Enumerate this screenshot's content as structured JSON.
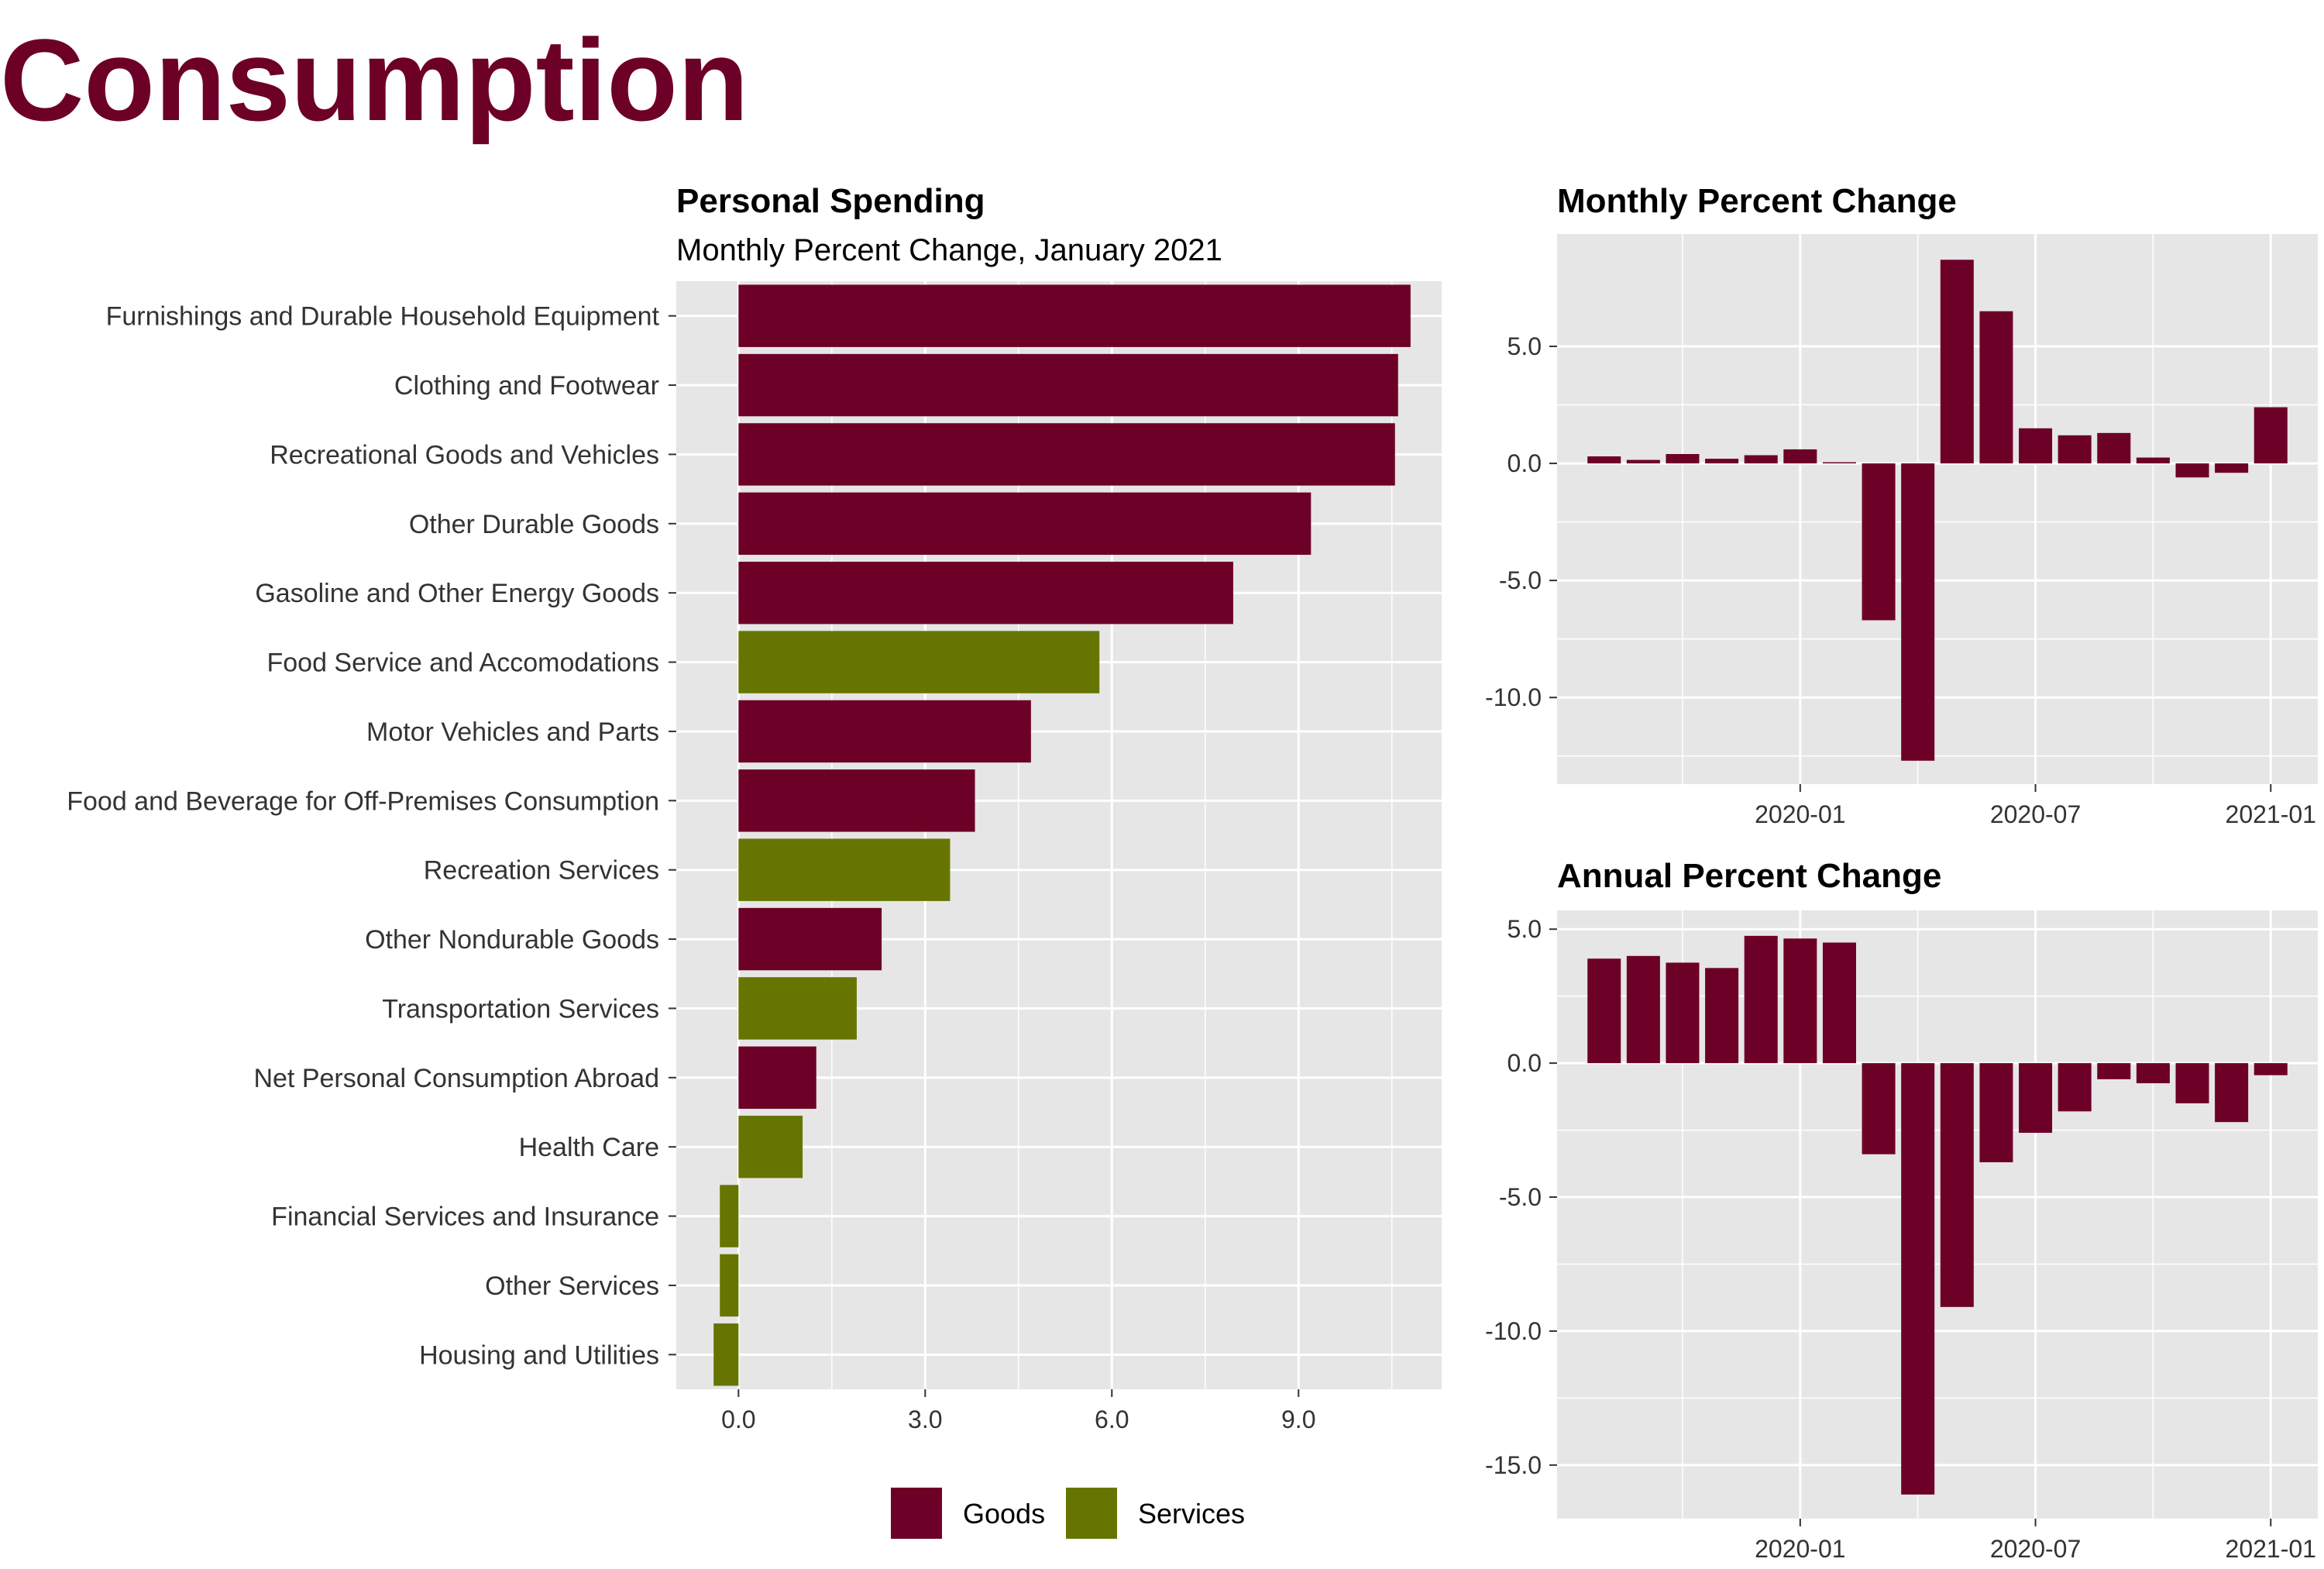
{
  "title": "Consumption",
  "colors": {
    "goods": "#6d0026",
    "services": "#667500",
    "panel_bg": "#e6e6e6",
    "grid": "#ffffff"
  },
  "chart_data": [
    {
      "type": "bar",
      "orientation": "horizontal",
      "title": "Personal Spending",
      "subtitle": "Monthly Percent Change, January 2021",
      "xlim": [
        -1.0,
        11.3
      ],
      "x_ticks": [
        0,
        3,
        6,
        9
      ],
      "x_tick_labels": [
        "0.0",
        "3.0",
        "6.0",
        "9.0"
      ],
      "legend": {
        "position": "bottom",
        "entries": [
          "Goods",
          "Services"
        ]
      },
      "categories": [
        "Furnishings and Durable Household Equipment",
        "Clothing and Footwear",
        "Recreational Goods and Vehicles",
        "Other Durable Goods",
        "Gasoline and Other Energy Goods",
        "Food Service and Accomodations",
        "Motor Vehicles and Parts",
        "Food and Beverage for Off-Premises Consumption",
        "Recreation Services",
        "Other Nondurable Goods",
        "Transportation Services",
        "Net Personal Consumption Abroad",
        "Health Care",
        "Financial Services and Insurance",
        "Other Services",
        "Housing and Utilities"
      ],
      "values": [
        10.8,
        10.6,
        10.55,
        9.2,
        7.95,
        5.8,
        4.7,
        3.8,
        3.4,
        2.3,
        1.9,
        1.25,
        1.03,
        -0.3,
        -0.3,
        -0.4
      ],
      "groups": [
        "Goods",
        "Goods",
        "Goods",
        "Goods",
        "Goods",
        "Services",
        "Goods",
        "Goods",
        "Services",
        "Goods",
        "Services",
        "Goods",
        "Services",
        "Services",
        "Services",
        "Services"
      ]
    },
    {
      "type": "bar",
      "title": "Monthly Percent Change",
      "x": [
        "2019-08",
        "2019-09",
        "2019-10",
        "2019-11",
        "2019-12",
        "2020-01",
        "2020-02",
        "2020-03",
        "2020-04",
        "2020-05",
        "2020-06",
        "2020-07",
        "2020-08",
        "2020-09",
        "2020-10",
        "2020-11",
        "2020-12",
        "2021-01"
      ],
      "values": [
        0.3,
        0.15,
        0.4,
        0.2,
        0.35,
        0.6,
        0.05,
        -6.7,
        -12.7,
        8.7,
        6.5,
        1.5,
        1.2,
        1.3,
        0.25,
        -0.6,
        -0.4,
        2.4
      ],
      "ylim": [
        -13.7,
        9.8
      ],
      "y_ticks": [
        -10,
        -5,
        0,
        5
      ],
      "y_tick_labels": [
        "-10.0",
        "-5.0",
        "0.0",
        "5.0"
      ],
      "x_tick_labels": [
        "2020-01",
        "2020-07",
        "2021-01"
      ]
    },
    {
      "type": "bar",
      "title": "Annual Percent Change",
      "x": [
        "2019-08",
        "2019-09",
        "2019-10",
        "2019-11",
        "2019-12",
        "2020-01",
        "2020-02",
        "2020-03",
        "2020-04",
        "2020-05",
        "2020-06",
        "2020-07",
        "2020-08",
        "2020-09",
        "2020-10",
        "2020-11",
        "2020-12",
        "2021-01"
      ],
      "values": [
        3.9,
        4.0,
        3.75,
        3.55,
        4.75,
        4.65,
        4.5,
        -3.4,
        -16.1,
        -9.1,
        -3.7,
        -2.6,
        -1.8,
        -0.6,
        -0.75,
        -1.5,
        -2.2,
        -0.45
      ],
      "ylim": [
        -17.0,
        5.7
      ],
      "y_ticks": [
        -15,
        -10,
        -5,
        0,
        5
      ],
      "y_tick_labels": [
        "-15.0",
        "-10.0",
        "-5.0",
        "0.0",
        "5.0"
      ],
      "x_tick_labels": [
        "2020-01",
        "2020-07",
        "2021-01"
      ]
    }
  ]
}
